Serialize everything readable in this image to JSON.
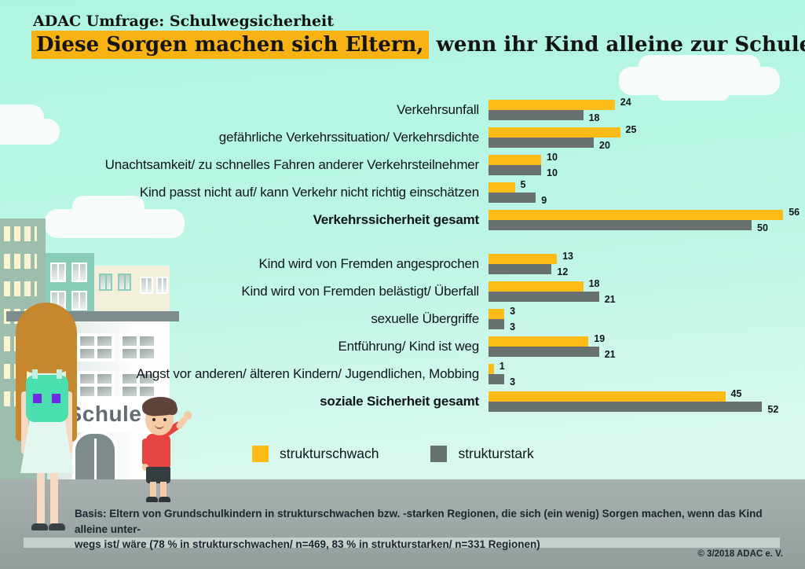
{
  "header": {
    "kicker": "ADAC Umfrage: Schulwegsicherheit",
    "title_highlight": "Diese Sorgen machen sich Eltern,",
    "title_rest": " wenn ihr Kind alleine zur Schule geht"
  },
  "palette": {
    "background_mint": "#B2F5E2",
    "title_highlight": "#F9B213",
    "bar_yellow": "#FCBB17",
    "bar_gray": "#68716F",
    "ground_gray": "#9EA8A6"
  },
  "chart_data": {
    "type": "bar",
    "orientation": "horizontal",
    "title": "Diese Sorgen machen sich Eltern, wenn ihr Kind alleine zur Schule geht",
    "unit": "percent",
    "xlim": [
      0,
      60
    ],
    "grid": false,
    "legend_position": "bottom",
    "categories": [
      "Verkehrsunfall",
      "gefährliche Verkehrssituation/ Verkehrsdichte",
      "Unachtsamkeit/ zu schnelles Fahren anderer Verkehrsteilnehmer",
      "Kind passt nicht auf/ kann Verkehr nicht richtig einschätzen",
      "Verkehrssicherheit gesamt",
      "Kind wird von Fremden angesprochen",
      "Kind wird von Fremden belästigt/ Überfall",
      "sexuelle Übergriffe",
      "Entführung/ Kind ist weg",
      "Angst vor anderen/ älteren Kindern/ Jugendlichen, Mobbing",
      "soziale Sicherheit gesamt"
    ],
    "series": [
      {
        "name": "strukturschwach",
        "color": "#FCBB17",
        "values": [
          24,
          25,
          10,
          5,
          56,
          13,
          18,
          3,
          19,
          1,
          45
        ]
      },
      {
        "name": "strukturstark",
        "color": "#68716F",
        "values": [
          18,
          20,
          10,
          9,
          50,
          12,
          21,
          3,
          21,
          3,
          52
        ]
      }
    ],
    "bold_categories": [
      "Verkehrssicherheit gesamt",
      "soziale Sicherheit gesamt"
    ],
    "group_break_after_index": 4
  },
  "footer": {
    "line1": "Basis: Eltern von Grundschulkindern in strukturschwachen bzw. -starken Regionen, die sich (ein wenig) Sorgen machen, wenn das Kind alleine unter-",
    "line2": "wegs ist/ wäre (78 % in strukturschwachen/ n=469, 83 % in strukturstarken/ n=331 Regionen)",
    "copyright": "© 3/2018  ADAC e. V."
  },
  "illustration": {
    "school_sign": "Schule"
  }
}
